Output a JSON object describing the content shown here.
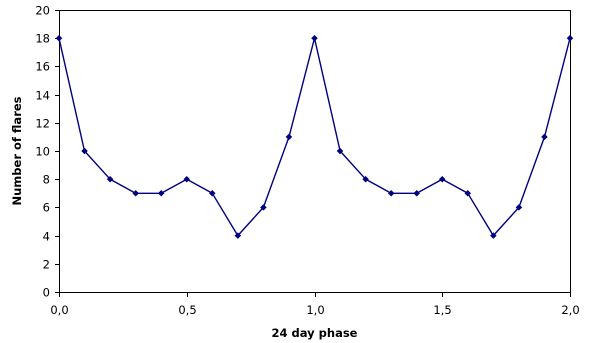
{
  "chart_data": {
    "type": "line",
    "title": "",
    "xlabel": "24 day phase",
    "ylabel": "Number of flares",
    "xlim": [
      0,
      2
    ],
    "ylim": [
      0,
      20
    ],
    "x_ticks": [
      0,
      0.5,
      1,
      1.5,
      2
    ],
    "x_tick_labels": [
      "0,0",
      "0,5",
      "1,0",
      "1,5",
      "2,0"
    ],
    "y_ticks": [
      0,
      2,
      4,
      6,
      8,
      10,
      12,
      14,
      16,
      18,
      20
    ],
    "y_tick_labels": [
      "0",
      "2",
      "4",
      "6",
      "8",
      "10",
      "12",
      "14",
      "16",
      "18",
      "20"
    ],
    "grid": false,
    "legend": "none",
    "series": [
      {
        "color": "#000080",
        "marker": "diamond",
        "x": [
          0.0,
          0.1,
          0.2,
          0.3,
          0.4,
          0.5,
          0.6,
          0.7,
          0.8,
          0.9,
          1.0,
          1.1,
          1.2,
          1.3,
          1.4,
          1.5,
          1.6,
          1.7,
          1.8,
          1.9,
          2.0
        ],
        "y": [
          18,
          10,
          8,
          7,
          7,
          8,
          7,
          4,
          6,
          11,
          18,
          10,
          8,
          7,
          7,
          8,
          7,
          4,
          6,
          11,
          18
        ]
      }
    ]
  }
}
